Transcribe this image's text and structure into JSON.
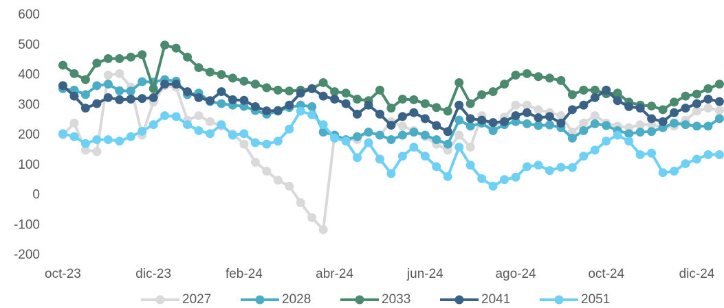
{
  "chart_data": {
    "type": "line",
    "x": [
      0,
      0.25,
      0.5,
      0.75,
      1,
      1.25,
      1.5,
      1.75,
      2,
      2.25,
      2.5,
      2.75,
      3,
      3.25,
      3.5,
      3.75,
      4,
      4.25,
      4.5,
      4.75,
      5,
      5.25,
      5.5,
      5.75,
      6,
      6.25,
      6.5,
      6.75,
      7,
      7.25,
      7.5,
      7.75,
      8,
      8.25,
      8.5,
      8.75,
      9,
      9.25,
      9.5,
      9.75,
      10,
      10.25,
      10.5,
      10.75,
      11,
      11.25,
      11.5,
      11.75,
      12,
      12.25,
      12.5,
      12.75,
      13,
      13.25,
      13.5,
      13.75,
      14,
      14.25,
      14.5
    ],
    "xlim": [
      -0.25,
      14.6
    ],
    "xticks": [
      {
        "value": 0,
        "label": "oct-23"
      },
      {
        "value": 2,
        "label": "dic-23"
      },
      {
        "value": 4,
        "label": "feb-24"
      },
      {
        "value": 6,
        "label": "abr-24"
      },
      {
        "value": 8,
        "label": "jun-24"
      },
      {
        "value": 10,
        "label": "ago-24"
      },
      {
        "value": 12,
        "label": "oct-24"
      },
      {
        "value": 14,
        "label": "dic-24"
      }
    ],
    "ylim": [
      -200,
      600
    ],
    "yticks": [
      -200,
      -100,
      0,
      100,
      200,
      300,
      400,
      500,
      600
    ],
    "legend": "bottom",
    "series": [
      {
        "name": "2027",
        "color": "#d9d9d9",
        "values": [
          200,
          240,
          150,
          145,
          400,
          405,
          360,
          200,
          310,
          365,
          360,
          250,
          265,
          245,
          230,
          205,
          170,
          110,
          80,
          50,
          30,
          -25,
          -75,
          -115,
          200,
          185,
          185,
          210,
          200,
          245,
          230,
          215,
          195,
          170,
          150,
          200,
          160,
          265,
          220,
          260,
          300,
          300,
          285,
          275,
          265,
          210,
          240,
          265,
          240,
          230,
          225,
          235,
          235,
          225,
          230,
          250,
          280,
          290,
          282
        ]
      },
      {
        "name": "2028",
        "color": "#4bacc6",
        "values": [
          355,
          350,
          335,
          365,
          370,
          348,
          347,
          378,
          377,
          385,
          380,
          335,
          340,
          312,
          305,
          300,
          296,
          282,
          270,
          280,
          292,
          300,
          295,
          210,
          200,
          185,
          195,
          210,
          200,
          185,
          200,
          210,
          200,
          185,
          170,
          250,
          230,
          240,
          215,
          235,
          245,
          238,
          232,
          234,
          225,
          190,
          215,
          238,
          232,
          215,
          205,
          210,
          212,
          225,
          240,
          235,
          230,
          230,
          255
        ]
      },
      {
        "name": "2033",
        "color": "#4a8a6e",
        "values": [
          433,
          405,
          385,
          440,
          455,
          455,
          460,
          468,
          355,
          500,
          490,
          460,
          425,
          410,
          402,
          390,
          380,
          370,
          358,
          350,
          347,
          350,
          355,
          375,
          345,
          340,
          320,
          315,
          350,
          290,
          320,
          318,
          305,
          292,
          280,
          375,
          305,
          335,
          345,
          370,
          400,
          405,
          395,
          390,
          382,
          335,
          350,
          350,
          338,
          340,
          310,
          300,
          297,
          285,
          310,
          330,
          337,
          355,
          370
        ]
      },
      {
        "name": "2041",
        "color": "#3a6186",
        "values": [
          365,
          330,
          290,
          305,
          325,
          318,
          320,
          322,
          325,
          370,
          370,
          345,
          325,
          315,
          345,
          318,
          316,
          295,
          281,
          282,
          300,
          340,
          355,
          330,
          320,
          305,
          270,
          300,
          270,
          233,
          262,
          275,
          255,
          232,
          212,
          300,
          255,
          250,
          242,
          245,
          265,
          275,
          258,
          262,
          240,
          285,
          300,
          325,
          350,
          315,
          295,
          290,
          255,
          245,
          275,
          290,
          305,
          320,
          312
        ]
      },
      {
        "name": "2051",
        "color": "#6fd0f5",
        "values": [
          205,
          195,
          172,
          185,
          185,
          180,
          195,
          213,
          235,
          265,
          262,
          235,
          215,
          205,
          235,
          200,
          205,
          175,
          170,
          180,
          220,
          280,
          268,
          235,
          190,
          180,
          125,
          175,
          120,
          72,
          130,
          160,
          130,
          95,
          62,
          160,
          100,
          55,
          30,
          52,
          60,
          95,
          100,
          82,
          93,
          92,
          130,
          150,
          180,
          200,
          180,
          135,
          140,
          75,
          80,
          105,
          120,
          135,
          135
        ]
      }
    ]
  }
}
